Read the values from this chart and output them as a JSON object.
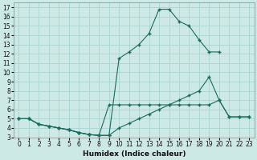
{
  "bg_color": "#cce9e5",
  "grid_color": "#aad4ce",
  "line_color": "#1a6b5a",
  "xlabel": "Humidex (Indice chaleur)",
  "xlim": [
    -0.5,
    23.5
  ],
  "ylim": [
    3,
    17.5
  ],
  "yticks": [
    3,
    4,
    5,
    6,
    7,
    8,
    9,
    10,
    11,
    12,
    13,
    14,
    15,
    16,
    17
  ],
  "xticks": [
    0,
    1,
    2,
    3,
    4,
    5,
    6,
    7,
    8,
    9,
    10,
    11,
    12,
    13,
    14,
    15,
    16,
    17,
    18,
    19,
    20,
    21,
    22,
    23
  ],
  "line1_x": [
    0,
    1,
    2,
    3,
    4,
    5,
    6,
    7,
    8,
    9,
    10,
    11,
    12,
    13,
    14,
    15,
    16,
    17,
    18,
    19,
    20
  ],
  "line1_y": [
    5.0,
    5.0,
    4.4,
    4.2,
    4.0,
    3.8,
    3.5,
    3.3,
    3.2,
    3.2,
    11.5,
    12.2,
    13.0,
    14.2,
    16.8,
    16.8,
    15.5,
    15.0,
    13.5,
    12.2,
    12.2
  ],
  "line2_x": [
    0,
    1,
    2,
    3,
    4,
    5,
    6,
    7,
    8,
    9,
    10,
    11,
    12,
    13,
    14,
    15,
    16,
    17,
    18,
    19,
    20,
    21,
    22,
    23
  ],
  "line2_y": [
    5.0,
    5.0,
    4.4,
    4.2,
    4.0,
    3.8,
    3.5,
    3.3,
    3.2,
    3.2,
    4.0,
    4.5,
    5.0,
    5.5,
    6.0,
    6.5,
    7.0,
    7.5,
    8.0,
    9.5,
    7.0,
    5.2,
    5.2,
    5.2
  ],
  "line3_x": [
    0,
    1,
    2,
    3,
    4,
    5,
    6,
    7,
    8,
    9,
    10,
    11,
    12,
    13,
    14,
    15,
    16,
    17,
    18,
    19,
    20,
    21,
    22,
    23
  ],
  "line3_y": [
    5.0,
    5.0,
    4.4,
    4.2,
    4.0,
    3.8,
    3.5,
    3.3,
    3.2,
    6.5,
    6.5,
    6.5,
    6.5,
    6.5,
    6.5,
    6.5,
    6.5,
    6.5,
    6.5,
    6.5,
    7.0,
    5.2,
    5.2,
    5.2
  ]
}
